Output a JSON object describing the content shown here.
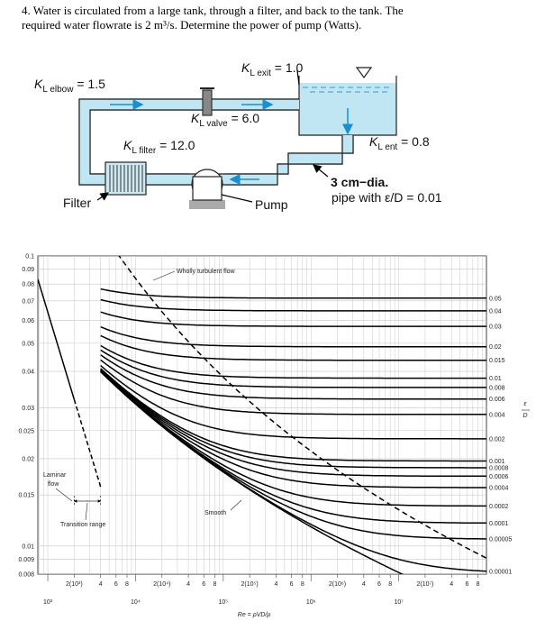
{
  "problem": {
    "lines": [
      "4. Water is circulated from a large tank, through a filter, and back to the tank. The",
      "required water flowrate is 2 m³/s. Determine the power of pump (Watts)."
    ]
  },
  "diagram": {
    "labels": [
      {
        "symbol": "K",
        "sub": "L elbow",
        "value": " = 1.5"
      },
      {
        "symbol": "K",
        "sub": "L exit",
        "value": " = 1.0"
      },
      {
        "symbol": "K",
        "sub": "L valve",
        "value": " = 6.0"
      },
      {
        "symbol": "K",
        "sub": "L filter",
        "value": " = 12.0"
      },
      {
        "symbol": "K",
        "sub": "L ent",
        "value": " = 0.8"
      }
    ],
    "filter_label": "Filter",
    "pump_label": "Pump",
    "pipe_label": [
      "3 cm−dia.",
      "pipe with ε/D = 0.01"
    ]
  },
  "chart_data": {
    "type": "line",
    "xscale": "log",
    "yscale": "log",
    "xlim": [
      770,
      100000000
    ],
    "ylim": [
      0.008,
      0.1
    ],
    "yticks": [
      0.1,
      0.09,
      0.08,
      0.07,
      0.06,
      0.05,
      0.04,
      0.03,
      0.025,
      0.02,
      0.015,
      0.01,
      0.009,
      0.008
    ],
    "xticks": [
      {
        "value": 1000,
        "label": "10³"
      },
      {
        "value": 10000,
        "label": "10⁴"
      },
      {
        "value": 100000,
        "label": "10⁵"
      },
      {
        "value": 1000000,
        "label": "10⁶"
      },
      {
        "value": 10000000,
        "label": "10⁷"
      }
    ],
    "xticks_minor": [
      {
        "value": 2000,
        "label": "2(10³)"
      },
      {
        "value": 4000,
        "label": "4"
      },
      {
        "value": 6000,
        "label": "6"
      },
      {
        "value": 8000,
        "label": "8"
      },
      {
        "value": 20000,
        "label": "2(10⁴)"
      },
      {
        "value": 40000,
        "label": "4"
      },
      {
        "value": 60000,
        "label": "6"
      },
      {
        "value": 80000,
        "label": "8"
      },
      {
        "value": 200000,
        "label": "2(10⁵)"
      },
      {
        "value": 400000,
        "label": "4"
      },
      {
        "value": 600000,
        "label": "6"
      },
      {
        "value": 800000,
        "label": "8"
      },
      {
        "value": 2000000,
        "label": "2(10⁶)"
      },
      {
        "value": 4000000,
        "label": "4"
      },
      {
        "value": 6000000,
        "label": "6"
      },
      {
        "value": 8000000,
        "label": "8"
      },
      {
        "value": 20000000,
        "label": "2(10⁷)"
      },
      {
        "value": 40000000,
        "label": "4"
      },
      {
        "value": 60000000,
        "label": "6"
      },
      {
        "value": 80000000,
        "label": "8"
      }
    ],
    "relative_roughness": [
      0.05,
      0.04,
      0.03,
      0.02,
      0.015,
      0.01,
      0.008,
      0.006,
      0.004,
      0.002,
      0.001,
      0.0008,
      0.0006,
      0.0004,
      0.0002,
      0.0001,
      5e-05,
      1e-05
    ],
    "right_label": {
      "top": "ε",
      "bottom": "D"
    },
    "xlabel": "Re = ρVD/μ",
    "grid": true,
    "annotations": {
      "wholly_turbulent": "Wholly turbulent flow",
      "laminar": [
        "Laminar",
        "flow"
      ],
      "transition": {
        "label": "Transition range",
        "range": [
          2000,
          4000
        ]
      },
      "smooth": "Smooth"
    }
  }
}
